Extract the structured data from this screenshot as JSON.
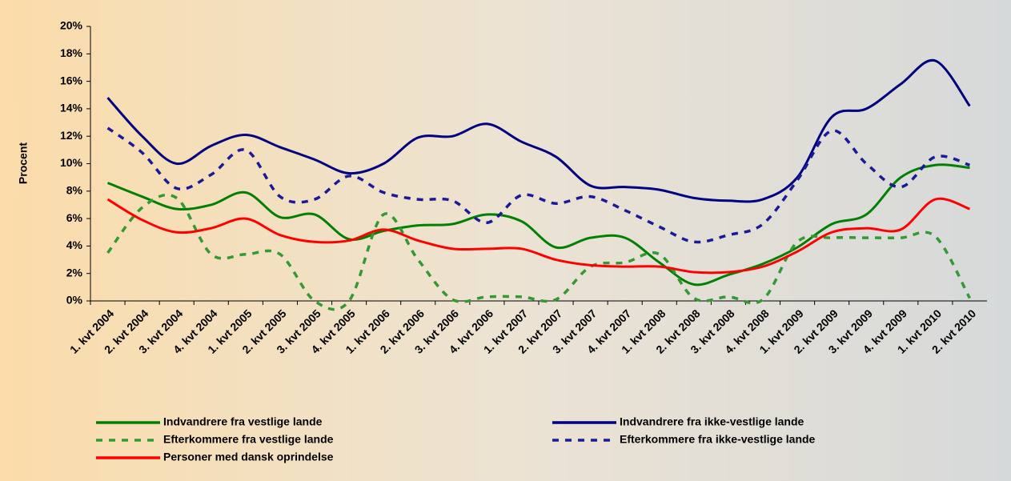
{
  "chart_data": {
    "type": "line",
    "y_label": "Procent",
    "categories": [
      "1. kvt 2004",
      "2. kvt 2004",
      "3. kvt 2004",
      "4. kvt 2004",
      "1. kvt 2005",
      "2. kvt 2005",
      "3. kvt 2005",
      "4. kvt 2005",
      "1. kvt 2006",
      "2. kvt 2006",
      "3. kvt 2006",
      "4. kvt 2006",
      "1. kvt 2007",
      "2. kvt 2007",
      "3. kvt 2007",
      "4. kvt 2007",
      "1. kvt 2008",
      "2. kvt 2008",
      "3. kvt 2008",
      "4. kvt 2008",
      "1. kvt 2009",
      "2. kvt 2009",
      "3. kvt 2009",
      "4. kvt 2009",
      "1. kvt 2010",
      "2. kvt 2010"
    ],
    "ylim": [
      0,
      20
    ],
    "yticks": [
      {
        "value": 0,
        "label": "0%"
      },
      {
        "value": 2,
        "label": "2%"
      },
      {
        "value": 4,
        "label": "4%"
      },
      {
        "value": 6,
        "label": "6%"
      },
      {
        "value": 8,
        "label": "8%"
      },
      {
        "value": 10,
        "label": "10%"
      },
      {
        "value": 12,
        "label": "12%"
      },
      {
        "value": 14,
        "label": "14%"
      },
      {
        "value": 16,
        "label": "16%"
      },
      {
        "value": 18,
        "label": "18%"
      },
      {
        "value": 20,
        "label": "20%"
      }
    ],
    "series": [
      {
        "name": "Indvandrere fra vestlige lande",
        "color": "#008000",
        "dashed": false,
        "values": [
          8.6,
          7.6,
          6.7,
          7.0,
          7.9,
          6.1,
          6.3,
          4.5,
          5.1,
          5.5,
          5.6,
          6.3,
          5.8,
          3.9,
          4.6,
          4.6,
          2.8,
          1.2,
          1.9,
          2.7,
          3.9,
          5.6,
          6.3,
          9.0,
          9.9,
          9.7
        ]
      },
      {
        "name": "Efterkommere fra vestlige lande",
        "color": "#339933",
        "dashed": true,
        "values": [
          3.5,
          6.8,
          7.5,
          3.4,
          3.4,
          3.4,
          0.0,
          0.0,
          6.3,
          3.0,
          0.1,
          0.3,
          0.3,
          0.1,
          2.5,
          2.8,
          3.4,
          0.2,
          0.3,
          0.1,
          4.3,
          4.6,
          4.6,
          4.6,
          4.7,
          0.2
        ]
      },
      {
        "name": "Personer med dansk oprindelse",
        "color": "#ff0000",
        "dashed": false,
        "values": [
          7.4,
          5.9,
          5.0,
          5.3,
          6.0,
          4.8,
          4.3,
          4.4,
          5.2,
          4.4,
          3.8,
          3.8,
          3.8,
          3.0,
          2.6,
          2.5,
          2.5,
          2.1,
          2.1,
          2.5,
          3.6,
          5.0,
          5.3,
          5.2,
          7.4,
          6.7
        ]
      },
      {
        "name": "Indvandrere fra ikke-vestlige lande",
        "color": "#000080",
        "dashed": false,
        "values": [
          14.8,
          12.0,
          10.0,
          11.3,
          12.1,
          11.2,
          10.3,
          9.3,
          10.0,
          11.9,
          12.0,
          12.9,
          11.6,
          10.5,
          8.4,
          8.3,
          8.1,
          7.5,
          7.3,
          7.4,
          9.0,
          13.4,
          14.0,
          15.8,
          17.5,
          14.2
        ]
      },
      {
        "name": "Efterkommere fra ikke-vestlige lande",
        "color": "#1a1a99",
        "dashed": true,
        "values": [
          12.6,
          10.8,
          8.2,
          9.2,
          11.0,
          7.6,
          7.4,
          9.1,
          7.9,
          7.4,
          7.3,
          5.7,
          7.7,
          7.1,
          7.6,
          6.6,
          5.4,
          4.3,
          4.8,
          5.6,
          8.8,
          12.4,
          10.0,
          8.3,
          10.5,
          9.9
        ]
      }
    ]
  }
}
